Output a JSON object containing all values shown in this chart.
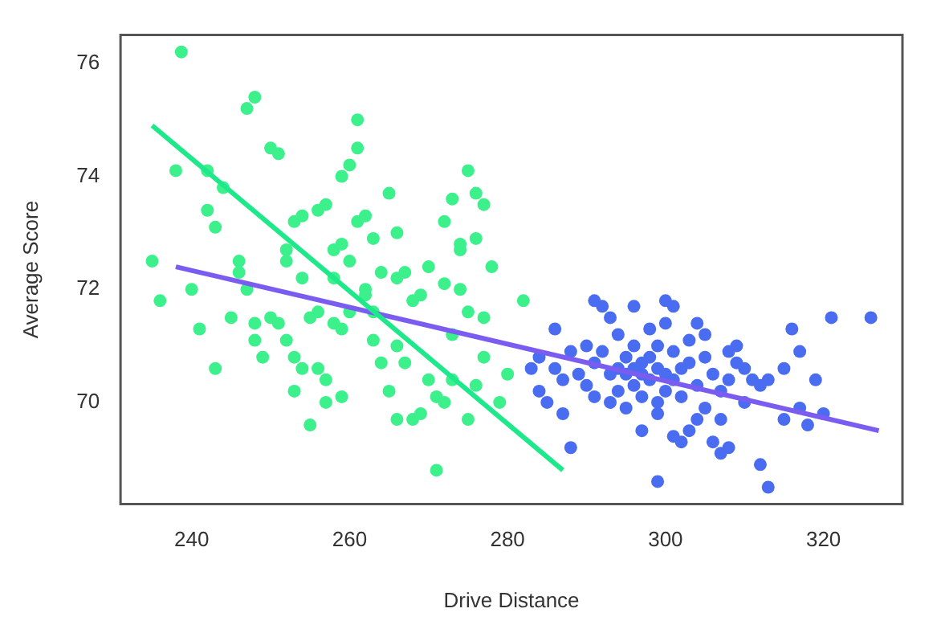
{
  "chart_data": {
    "type": "scatter",
    "xlabel": "Drive Distance",
    "ylabel": "Average Score",
    "xlim": [
      231,
      330
    ],
    "xticks": [
      240,
      260,
      280,
      300,
      320
    ],
    "ylim": [
      68.2,
      76.5
    ],
    "yticks": [
      70,
      72,
      74,
      76
    ],
    "grid": false,
    "legend": false,
    "marker": "circle",
    "series": [
      {
        "color": "#3cf08c",
        "x": [
          238.7,
          248,
          247,
          235,
          236,
          240,
          238,
          242,
          244,
          242,
          243,
          241,
          245,
          243,
          246,
          246,
          248,
          248,
          250,
          251,
          252,
          252,
          253,
          254,
          254,
          251,
          252,
          253,
          254,
          253,
          255,
          256,
          256,
          257,
          257,
          255,
          259,
          256,
          257,
          258,
          259,
          260,
          261,
          261,
          259,
          260,
          258,
          258,
          259,
          261,
          262,
          263,
          262,
          263,
          264,
          265,
          266,
          266,
          267,
          264,
          265,
          266,
          267,
          266,
          268,
          269,
          268,
          269,
          270,
          271,
          272,
          271,
          273,
          270,
          272,
          273,
          274,
          274,
          275,
          273,
          275,
          276,
          277,
          272,
          276,
          275,
          277,
          276,
          278,
          277,
          280,
          282,
          279,
          274,
          262,
          263,
          260,
          250,
          249,
          247
        ],
        "values": [
          76.2,
          75.4,
          75.2,
          72.5,
          71.8,
          72,
          74.1,
          74.1,
          73.8,
          73.4,
          73.1,
          71.3,
          71.5,
          70.6,
          72.5,
          72.3,
          71.4,
          71.1,
          74.5,
          74.4,
          72.7,
          72.5,
          73.2,
          73.3,
          72.2,
          71.4,
          71.1,
          70.8,
          70.6,
          70.2,
          71.5,
          71.6,
          70.6,
          70.4,
          70,
          69.6,
          70.1,
          73.4,
          73.5,
          72.7,
          74,
          74.2,
          74.5,
          75,
          72.8,
          72.5,
          72.2,
          71.4,
          71.3,
          73.2,
          73.3,
          72.9,
          71.9,
          71.6,
          72.3,
          73.7,
          73,
          72.2,
          72.3,
          70.7,
          70.2,
          71,
          70.7,
          69.7,
          69.7,
          69.8,
          71.8,
          71.9,
          70.4,
          70.1,
          70,
          68.8,
          70.4,
          72.4,
          73.2,
          73.6,
          72.7,
          72,
          71.6,
          71.2,
          69.7,
          70.3,
          70.8,
          72.1,
          73.7,
          74.1,
          73.5,
          72.9,
          72.4,
          71.5,
          70.5,
          71.8,
          70,
          72.8,
          72,
          71.1,
          71.6,
          71.5,
          70.8,
          72
        ]
      },
      {
        "color": "#4a6cf0",
        "x": [
          283,
          284,
          284,
          285,
          286,
          286,
          287,
          287,
          288,
          288,
          289,
          290,
          290,
          291,
          291,
          291,
          292,
          292,
          293,
          293,
          293,
          294,
          294,
          294,
          295,
          295,
          295,
          296,
          296,
          296,
          296,
          297,
          297,
          297,
          297,
          298,
          298,
          298,
          299,
          299,
          299,
          299,
          300,
          300,
          300,
          300,
          301,
          301,
          301,
          302,
          302,
          302,
          303,
          303,
          303,
          304,
          304,
          304,
          305,
          305,
          305,
          306,
          306,
          307,
          307,
          307,
          308,
          308,
          308,
          309,
          309,
          310,
          310,
          311,
          312,
          312,
          313,
          313,
          315,
          315,
          316,
          317,
          317,
          318,
          319,
          320,
          321,
          326,
          299,
          301
        ],
        "values": [
          70.6,
          70.8,
          70.2,
          70,
          71.3,
          70.6,
          70.4,
          69.8,
          69.2,
          70.9,
          70.5,
          71,
          70.3,
          71.8,
          70.7,
          70.1,
          71.7,
          70.9,
          70.5,
          70,
          71.5,
          71.2,
          70.6,
          70.2,
          70.8,
          70.5,
          69.9,
          71.7,
          71,
          70.6,
          70.3,
          70.7,
          70.5,
          70.1,
          69.5,
          71.3,
          70.8,
          70.4,
          71,
          70.6,
          69.8,
          68.6,
          71.8,
          71.4,
          70.5,
          70.2,
          71.7,
          70.9,
          69.4,
          70.6,
          70.1,
          69.3,
          71.1,
          70.7,
          69.5,
          71.4,
          70.3,
          69.7,
          71.2,
          70.8,
          69.9,
          70.5,
          69.3,
          70.2,
          69.7,
          69.1,
          70.9,
          70.4,
          69.2,
          71,
          70.7,
          70.6,
          70,
          70.4,
          70.3,
          68.9,
          70.4,
          68.5,
          69.7,
          70.6,
          71.3,
          70.9,
          69.9,
          69.6,
          70.4,
          69.8,
          71.5,
          71.5,
          70,
          70.4
        ]
      },
      {
        "type": "line",
        "color": "#1de88a",
        "x": [
          235,
          287
        ],
        "values": [
          74.9,
          68.8
        ],
        "marker": "none"
      },
      {
        "type": "line",
        "color": "#7b5cf0",
        "x": [
          238,
          327
        ],
        "values": [
          72.4,
          69.5
        ],
        "marker": "none"
      }
    ]
  }
}
